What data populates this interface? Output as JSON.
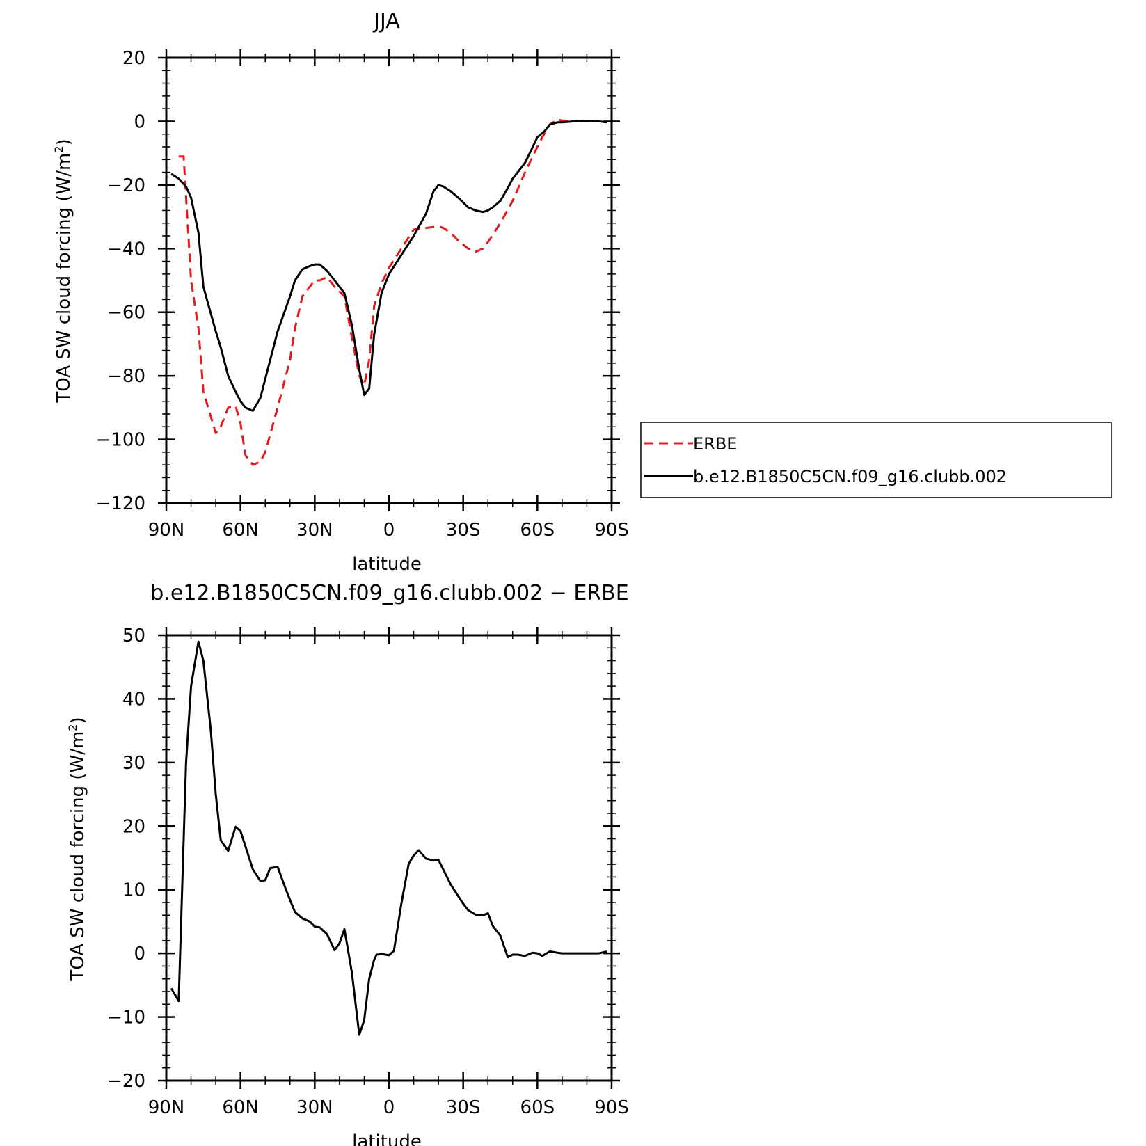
{
  "colors": {
    "erbe": "#e41a1c",
    "model": "#000000",
    "frame": "#000000"
  },
  "chart_data": [
    {
      "type": "line",
      "title": "JJA",
      "xlabel": "latitude",
      "ylabel": "TOA SW cloud forcing (W/m²)",
      "ylabel_main": "TOA SW cloud forcing (W/m",
      "ylabel_sup": "2",
      "ylabel_close": ")",
      "xlim": [
        90,
        -90
      ],
      "ylim": [
        -120,
        20
      ],
      "xticks": [
        90,
        60,
        30,
        0,
        -30,
        -60,
        -90
      ],
      "xtick_labels": [
        "90N",
        "60N",
        "30N",
        "0",
        "30S",
        "60S",
        "90S"
      ],
      "yticks": [
        -120,
        -100,
        -80,
        -60,
        -40,
        -20,
        0,
        20
      ],
      "ytick_labels": [
        "−120",
        "−100",
        "−80",
        "−60",
        "−40",
        "−20",
        "0",
        "20"
      ],
      "legend_position": "right",
      "series": [
        {
          "name": "ERBE",
          "style": "dashed",
          "color": "#e41a1c",
          "x": [
            85,
            83,
            80,
            77,
            75,
            70,
            68,
            65,
            62,
            60,
            58,
            55,
            52,
            50,
            45,
            40,
            38,
            35,
            32,
            30,
            28,
            25,
            22,
            18,
            15,
            12,
            10,
            8,
            6,
            3,
            0,
            -5,
            -10,
            -15,
            -20,
            -22,
            -25,
            -28,
            -32,
            -35,
            -38,
            -40,
            -45,
            -50,
            -55,
            -60,
            -62,
            -65,
            -68,
            -70,
            -75,
            -80,
            -85,
            -88
          ],
          "y": [
            -11,
            -11,
            -50,
            -65,
            -85,
            -98,
            -96,
            -90,
            -89.5,
            -95,
            -105,
            -108,
            -107,
            -104,
            -90,
            -75,
            -65,
            -55,
            -52,
            -50,
            -50,
            -49,
            -52,
            -55,
            -68,
            -80,
            -83,
            -75,
            -58,
            -51,
            -46,
            -40,
            -34,
            -33.5,
            -33,
            -33.5,
            -35,
            -37.5,
            -40,
            -41,
            -40,
            -38,
            -32,
            -25,
            -16,
            -8,
            -5,
            -1,
            0.5,
            0.3,
            0,
            0.2,
            0,
            -0.3
          ]
        },
        {
          "name": "b.e12.B1850C5CN.f09_g16.clubb.002",
          "style": "solid",
          "color": "#000000",
          "x": [
            88,
            85,
            82,
            80,
            77,
            75,
            70,
            68,
            65,
            62,
            60,
            58,
            55,
            52,
            50,
            45,
            40,
            38,
            35,
            32,
            30,
            28,
            25,
            22,
            18,
            15,
            12,
            10,
            8,
            6,
            3,
            0,
            -5,
            -10,
            -15,
            -18,
            -20,
            -22,
            -25,
            -28,
            -32,
            -35,
            -38,
            -40,
            -42,
            -45,
            -48,
            -50,
            -55,
            -60,
            -63,
            -65,
            -68,
            -70,
            -75,
            -80,
            -85,
            -88
          ],
          "y": [
            -16.5,
            -18,
            -20.5,
            -24,
            -35,
            -52,
            -66,
            -71,
            -80,
            -85,
            -88,
            -90,
            -91,
            -87,
            -81,
            -66,
            -55,
            -50,
            -46.5,
            -45.5,
            -45,
            -45,
            -47,
            -50,
            -54,
            -64,
            -78,
            -86,
            -84,
            -67,
            -54,
            -48,
            -42,
            -36,
            -29,
            -22,
            -20,
            -20.5,
            -22,
            -24,
            -27,
            -28,
            -28.5,
            -28,
            -27,
            -25,
            -21,
            -18,
            -13,
            -5,
            -3,
            -1,
            -0.3,
            -0.3,
            0,
            0.2,
            0,
            -0.3
          ]
        }
      ]
    },
    {
      "type": "line",
      "title": "b.e12.B1850C5CN.f09_g16.clubb.002 − ERBE",
      "xlabel": "latitude",
      "ylabel": "TOA SW cloud forcing (W/m²)",
      "ylabel_main": "TOA SW cloud forcing (W/m",
      "ylabel_sup": "2",
      "ylabel_close": ")",
      "xlim": [
        90,
        -90
      ],
      "ylim": [
        -20,
        50
      ],
      "xticks": [
        90,
        60,
        30,
        0,
        -30,
        -60,
        -90
      ],
      "xtick_labels": [
        "90N",
        "60N",
        "30N",
        "0",
        "30S",
        "60S",
        "90S"
      ],
      "yticks": [
        -20,
        -10,
        0,
        10,
        20,
        30,
        40,
        50
      ],
      "ytick_labels": [
        "−20",
        "−10",
        "0",
        "10",
        "20",
        "30",
        "40",
        "50"
      ],
      "series": [
        {
          "style": "solid",
          "color": "#000000",
          "x": [
            88,
            85,
            82,
            80,
            77,
            75,
            72,
            70,
            68,
            65,
            62,
            60,
            58,
            55,
            52,
            50,
            48,
            45,
            42,
            40,
            38,
            35,
            32,
            30,
            28,
            25,
            22,
            20,
            18,
            15,
            12,
            10,
            8,
            6,
            5,
            3,
            0,
            -2,
            -5,
            -8,
            -10,
            -12,
            -15,
            -18,
            -20,
            -25,
            -28,
            -30,
            -32,
            -35,
            -38,
            -40,
            -42,
            -45,
            -48,
            -50,
            -52,
            -55,
            -58,
            -60,
            -62,
            -65,
            -68,
            -70,
            -72,
            -75,
            -77,
            -80,
            -82,
            -85,
            -88
          ],
          "y": [
            -5.5,
            -7.5,
            30,
            42,
            49,
            46,
            35,
            25,
            17.8,
            16.1,
            19.9,
            19.2,
            16.8,
            13.2,
            11.4,
            11.5,
            13.4,
            13.6,
            10.4,
            8.4,
            6.5,
            5.5,
            5,
            4.2,
            4.1,
            3,
            0.5,
            1.6,
            3.8,
            -3,
            -12.8,
            -10.5,
            -4,
            -1,
            -0.2,
            -0.1,
            -0.3,
            0.4,
            7.8,
            14.1,
            15.4,
            16.2,
            14.9,
            14.6,
            14.7,
            10.8,
            9,
            7.8,
            6.8,
            6.1,
            6,
            6.3,
            4.3,
            2.8,
            -0.6,
            -0.2,
            -0.2,
            -0.4,
            0.1,
            0,
            -0.4,
            0.3,
            0.1,
            0,
            0,
            0,
            0,
            0,
            0,
            0,
            0.3
          ]
        }
      ]
    }
  ]
}
